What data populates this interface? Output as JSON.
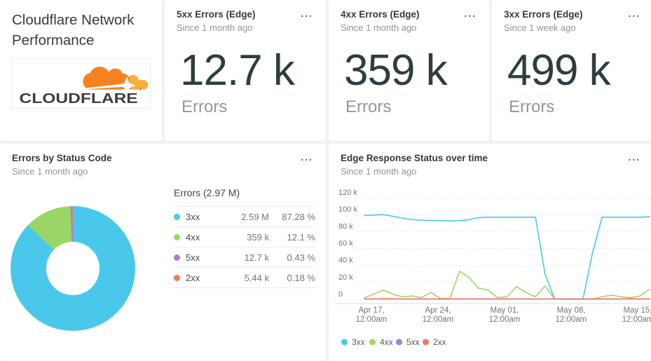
{
  "icons": {
    "ellipsis": "..."
  },
  "brand_card": {
    "title": "Cloudflare Network Performance",
    "logo_text": "CLOUDFLARE",
    "logo_colors": {
      "cloud": "#f6821f",
      "cloud_light": "#fbad41",
      "text": "#3e3f41"
    }
  },
  "kpis": [
    {
      "title": "5xx Errors (Edge)",
      "subtitle": "Since 1 month ago",
      "value": "12.7 k",
      "unit": "Errors"
    },
    {
      "title": "4xx Errors (Edge)",
      "subtitle": "Since 1 month ago",
      "value": "359 k",
      "unit": "Errors"
    },
    {
      "title": "3xx Errors (Edge)",
      "subtitle": "Since 1 week ago",
      "value": "499 k",
      "unit": "Errors"
    }
  ],
  "donut_card": {
    "title": "Errors by Status Code",
    "subtitle": "Since 1 month ago",
    "table_header": "Errors (2.97 M)",
    "chart_data": {
      "type": "pie",
      "title": "Errors by Status Code",
      "segments": [
        {
          "label": "3xx",
          "value": "2.59 M",
          "percent": 87.28,
          "percent_label": "87.28 %",
          "color": "#49c8eb"
        },
        {
          "label": "4xx",
          "value": "359 k",
          "percent": 12.1,
          "percent_label": "12.1 %",
          "color": "#9ad768"
        },
        {
          "label": "5xx",
          "value": "12.7 k",
          "percent": 0.43,
          "percent_label": "0.43 %",
          "color": "#aa7dd4"
        },
        {
          "label": "2xx",
          "value": "5.44 k",
          "percent": 0.18,
          "percent_label": "0.18 %",
          "color": "#f3795b"
        }
      ]
    }
  },
  "line_card": {
    "title": "Edge Response Status over time",
    "subtitle": "Since 1 month ago",
    "chart_data": {
      "type": "line",
      "title": "Edge Response Status over time",
      "ylim": [
        0,
        120000
      ],
      "y_ticks": [
        {
          "label": "120 k",
          "value": 120
        },
        {
          "label": "100 k",
          "value": 100
        },
        {
          "label": "80 k",
          "value": 80
        },
        {
          "label": "60 k",
          "value": 60
        },
        {
          "label": "40 k",
          "value": 40
        },
        {
          "label": "20 k",
          "value": 20
        },
        {
          "label": "0",
          "value": 0
        }
      ],
      "x_ticks": [
        {
          "line1": "Apr 17,",
          "line2": "12:00am"
        },
        {
          "line1": "Apr 24,",
          "line2": "12:00am"
        },
        {
          "line1": "May 01,",
          "line2": "12:00am"
        },
        {
          "line1": "May 08,",
          "line2": "12:00am"
        },
        {
          "line1": "May 15,",
          "line2": "12:00am"
        }
      ],
      "legend_position": "bottom",
      "legend": [
        "3xx",
        "4xx",
        "5xx",
        "2xx"
      ],
      "series": [
        {
          "name": "3xx",
          "color": "#49c8eb",
          "values": [
            99,
            99.5,
            100,
            98,
            96,
            94,
            93.5,
            93,
            93,
            92.5,
            93,
            94,
            96.5,
            97,
            97,
            97,
            97,
            97,
            97,
            30,
            0.5,
            0.4,
            0.4,
            0.4,
            55,
            97,
            97,
            97,
            97,
            97,
            97.5
          ]
        },
        {
          "name": "4xx",
          "color": "#9ad768",
          "values": [
            2,
            6,
            11,
            6,
            3,
            4,
            2,
            8,
            1,
            1,
            33,
            26,
            13,
            11,
            2,
            3,
            15,
            8,
            3,
            16,
            0.5,
            0.3,
            0.3,
            0.3,
            0.3,
            3,
            5,
            3,
            2,
            4,
            12
          ]
        },
        {
          "name": "5xx",
          "color": "#aa7dd4",
          "values": [
            0.4,
            0.4,
            0.4,
            0.4,
            0.4,
            0.4,
            0.4,
            0.4,
            0.4,
            0.4,
            0.4,
            0.4,
            0.4,
            0.4,
            0.4,
            0.4,
            0.4,
            0.4,
            0.4,
            0.4,
            0.4,
            0.4,
            0.4,
            0.4,
            0.4,
            0.4,
            0.4,
            0.4,
            0.4,
            0.4,
            0.4
          ]
        },
        {
          "name": "2xx",
          "color": "#f3795b",
          "values": [
            0.3,
            0.4,
            0.8,
            0.6,
            0.3,
            0.3,
            0.4,
            0.3,
            0.3,
            0.3,
            0.5,
            0.4,
            0.3,
            0.3,
            0.3,
            0.3,
            0.4,
            0.3,
            0.3,
            0.3,
            0.3,
            0.2,
            0.2,
            0.2,
            0.2,
            0.3,
            0.3,
            0.4,
            0.8,
            0.5,
            0.3
          ]
        }
      ]
    }
  }
}
